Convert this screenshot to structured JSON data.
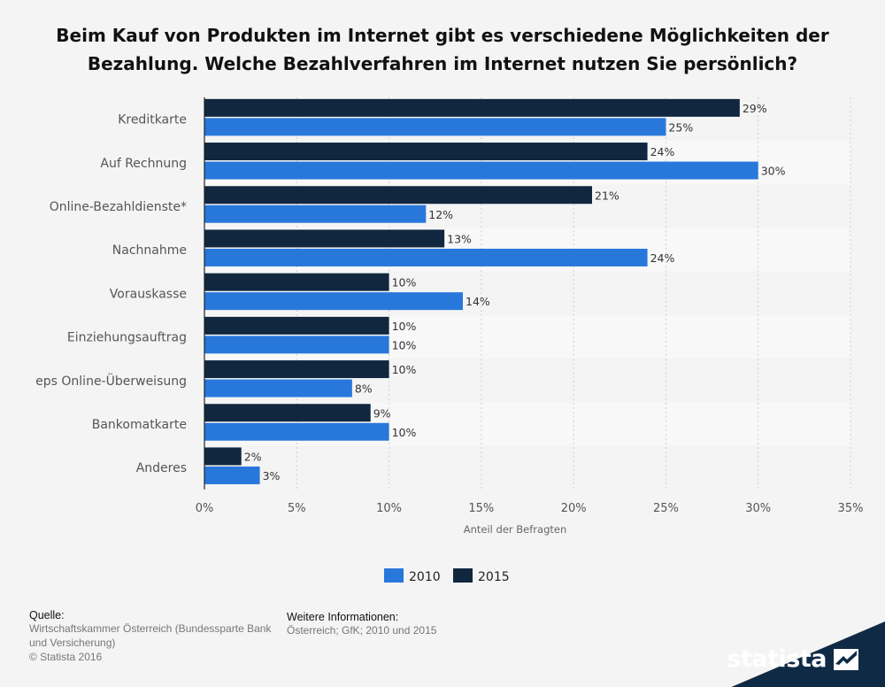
{
  "title": "Beim Kauf von Produkten im Internet gibt es verschiedene Möglichkeiten der Bezahlung. Welche Bezahlverfahren im Internet nutzen Sie persönlich?",
  "colors": {
    "2015": "#10273f",
    "2010": "#2878dc",
    "background": "#f4f4f4",
    "band": "#f8f8f8"
  },
  "chart_data": {
    "type": "bar",
    "orientation": "horizontal",
    "categories": [
      "Kreditkarte",
      "Auf Rechnung",
      "Online-Bezahldienste*",
      "Nachnahme",
      "Vorauskasse",
      "Einziehungsauftrag",
      "eps Online-Überweisung",
      "Bankomatkarte",
      "Anderes"
    ],
    "series": [
      {
        "name": "2015",
        "values": [
          29,
          24,
          21,
          13,
          10,
          10,
          10,
          9,
          2
        ]
      },
      {
        "name": "2010",
        "values": [
          25,
          30,
          12,
          24,
          14,
          10,
          8,
          10,
          3
        ]
      }
    ],
    "value_suffix": "%",
    "xlabel": "Anteil der Befragten",
    "xlim": [
      0,
      35
    ],
    "xticks": [
      0,
      5,
      10,
      15,
      20,
      25,
      30,
      35
    ],
    "grid": true,
    "legend_placement": "bottom-center",
    "legend_order": [
      "2010",
      "2015"
    ]
  },
  "footer": {
    "source_heading": "Quelle:",
    "source_text": "Wirtschaftskammer Österreich (Bundessparte Bank und Versicherung)",
    "copyright": "© Statista 2016",
    "info_heading": "Weitere Informationen:",
    "info_text": "Österreich; GfK; 2010 und 2015"
  },
  "brand": {
    "name": "statista",
    "icon": "statista-logo-icon"
  }
}
